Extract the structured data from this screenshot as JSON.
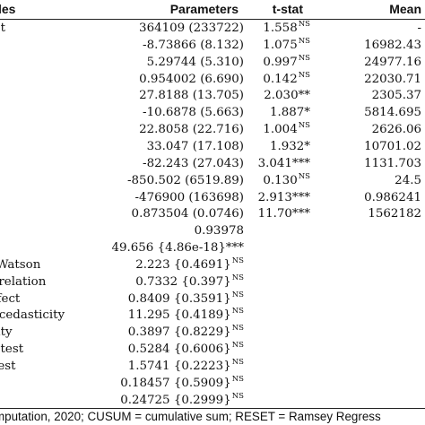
{
  "table": {
    "headers": {
      "variables": "les",
      "parameters": "Parameters",
      "tstat": "t-stat",
      "mean": "Mean"
    },
    "rows": [
      {
        "label": "pt",
        "param": "364109 (233722)",
        "t": "1.558",
        "t_sup": "NS",
        "mean": "-"
      },
      {
        "label": "",
        "param": "-8.73866 (8.132)",
        "t": "1.075",
        "t_sup": "NS",
        "mean": "16982.43"
      },
      {
        "label": "",
        "param": "5.29744 (5.310)",
        "t": "0.997",
        "t_sup": "NS",
        "mean": "24977.16"
      },
      {
        "label": "",
        "param": "0.954002 (6.690)",
        "t": "0.142",
        "t_sup": "NS",
        "mean": "22030.71"
      },
      {
        "label": "",
        "param": "27.8188 (13.705)",
        "t": "2.030**",
        "t_sup": "",
        "mean": "2305.37"
      },
      {
        "label": "",
        "param": "-10.6878 (5.663)",
        "t": "1.887*",
        "t_sup": "",
        "mean": "5814.695"
      },
      {
        "label": "",
        "param": "22.8058 (22.716)",
        "t": "1.004",
        "t_sup": "NS",
        "mean": "2626.06"
      },
      {
        "label": "",
        "param": "33.047 (17.108)",
        "t": "1.932*",
        "t_sup": "",
        "mean": "10701.02"
      },
      {
        "label": "",
        "param": "-82.243 (27.043)",
        "t": "3.041***",
        "t_sup": "",
        "mean": "1131.703"
      },
      {
        "label": "",
        "param": "-850.502 (6519.89)",
        "t": "0.130",
        "t_sup": "NS",
        "mean": "24.5"
      },
      {
        "label": "",
        "param": "-476900 (163698)",
        "t": "2.913***",
        "t_sup": "",
        "mean": "0.986241"
      },
      {
        "label": "",
        "param": "0.873504 (0.0746)",
        "t": "11.70***",
        "t_sup": "",
        "mean": "1562182"
      },
      {
        "label": "",
        "param": "0.93978",
        "param_sup": "",
        "t": "",
        "t_sup": "",
        "mean": ""
      },
      {
        "label": "",
        "param": "49.656 {4.86e-18}***",
        "param_sup": "",
        "t": "",
        "t_sup": "",
        "mean": ""
      },
      {
        "label": "-Watson",
        "param": "2.223 {0.4691}",
        "param_sup": "NS",
        "t": "",
        "t_sup": "",
        "mean": ""
      },
      {
        "label": "rrelation",
        "param": "0.7332 {0.397}",
        "param_sup": "NS",
        "t": "",
        "t_sup": "",
        "mean": ""
      },
      {
        "label": "ffect",
        "param": "0.8409 {0.3591}",
        "param_sup": "NS",
        "t": "",
        "t_sup": "",
        "mean": ""
      },
      {
        "label": "scedasticity",
        "param": "11.295 {0.4189}",
        "param_sup": "NS",
        "t": "",
        "t_sup": "",
        "mean": ""
      },
      {
        "label": "lity",
        "param": "0.3897 {0.8229}",
        "param_sup": "NS",
        "t": "",
        "t_sup": "",
        "mean": ""
      },
      {
        "label": "l test",
        "param": "0.5284 {0.6006}",
        "param_sup": "NS",
        "t": "",
        "t_sup": "",
        "mean": ""
      },
      {
        "label": "test",
        "param": "1.5741 {0.2223}",
        "param_sup": "NS",
        "t": "",
        "t_sup": "",
        "mean": ""
      },
      {
        "label": "",
        "param": "0.18457 {0.5909}",
        "param_sup": "NS",
        "t": "",
        "t_sup": "",
        "mean": ""
      },
      {
        "label": "",
        "param": "0.24725 {0.2999}",
        "param_sup": "NS",
        "t": "",
        "t_sup": "",
        "mean": ""
      }
    ]
  },
  "footnote": "mputation, 2020; CUSUM = cumulative sum; RESET = Ramsey Regress"
}
